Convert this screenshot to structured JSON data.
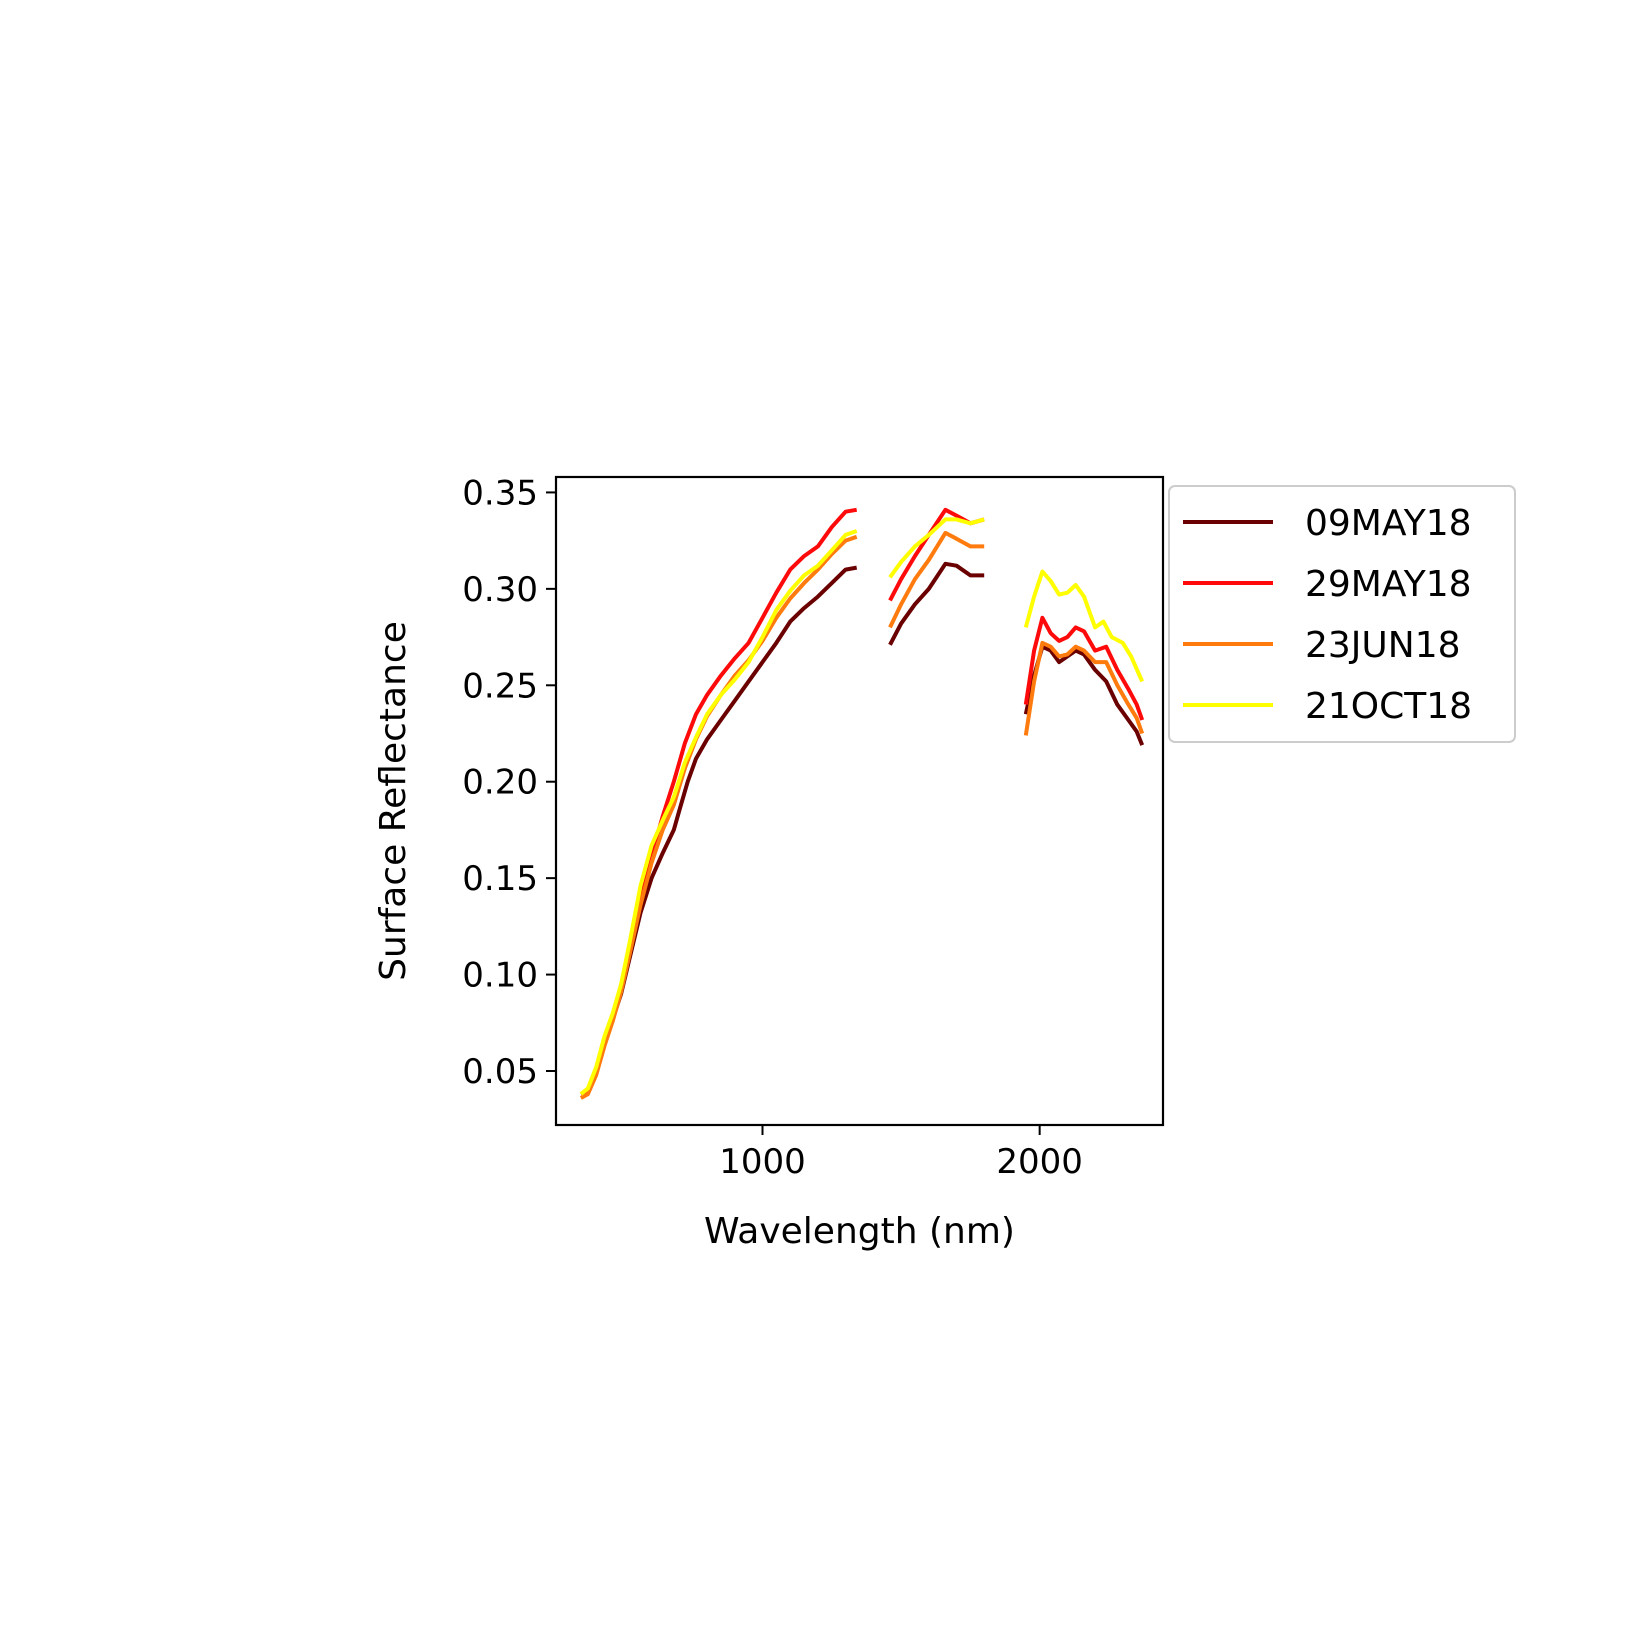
{
  "chart_data": {
    "type": "line",
    "title": "",
    "xlabel": "Wavelength (nm)",
    "ylabel": "Surface Reflectance",
    "xlim": [
      255,
      2445
    ],
    "ylim": [
      0.022,
      0.358
    ],
    "xticks": [
      1000,
      2000
    ],
    "yticks": [
      0.05,
      0.1,
      0.15,
      0.2,
      0.25,
      0.3,
      0.35
    ],
    "grid": false,
    "legend_position": "outside upper right",
    "series": [
      {
        "name": "09MAY18",
        "color": "#6b0000",
        "segments": [
          [
            [
              345,
              0.038
            ],
            [
              370,
              0.04
            ],
            [
              400,
              0.05
            ],
            [
              430,
              0.065
            ],
            [
              460,
              0.077
            ],
            [
              490,
              0.09
            ],
            [
              520,
              0.108
            ],
            [
              560,
              0.132
            ],
            [
              600,
              0.15
            ],
            [
              640,
              0.163
            ],
            [
              680,
              0.175
            ],
            [
              700,
              0.185
            ],
            [
              730,
              0.2
            ],
            [
              760,
              0.212
            ],
            [
              800,
              0.222
            ],
            [
              850,
              0.232
            ],
            [
              900,
              0.242
            ],
            [
              950,
              0.252
            ],
            [
              1000,
              0.262
            ],
            [
              1050,
              0.272
            ],
            [
              1100,
              0.283
            ],
            [
              1150,
              0.29
            ],
            [
              1200,
              0.296
            ],
            [
              1250,
              0.303
            ],
            [
              1300,
              0.31
            ],
            [
              1340,
              0.311
            ]
          ],
          [
            [
              1460,
              0.271
            ],
            [
              1500,
              0.282
            ],
            [
              1550,
              0.292
            ],
            [
              1600,
              0.3
            ],
            [
              1660,
              0.313
            ],
            [
              1700,
              0.312
            ],
            [
              1750,
              0.307
            ],
            [
              1800,
              0.307
            ]
          ],
          [
            [
              1950,
              0.235
            ],
            [
              1980,
              0.255
            ],
            [
              2010,
              0.27
            ],
            [
              2040,
              0.268
            ],
            [
              2070,
              0.262
            ],
            [
              2100,
              0.265
            ],
            [
              2130,
              0.268
            ],
            [
              2160,
              0.266
            ],
            [
              2200,
              0.258
            ],
            [
              2240,
              0.252
            ],
            [
              2280,
              0.24
            ],
            [
              2320,
              0.232
            ],
            [
              2350,
              0.226
            ],
            [
              2370,
              0.219
            ]
          ]
        ]
      },
      {
        "name": "29MAY18",
        "color": "#ff0a0a",
        "segments": [
          [
            [
              345,
              0.038
            ],
            [
              370,
              0.04
            ],
            [
              400,
              0.05
            ],
            [
              430,
              0.065
            ],
            [
              460,
              0.078
            ],
            [
              490,
              0.093
            ],
            [
              520,
              0.112
            ],
            [
              560,
              0.14
            ],
            [
              600,
              0.162
            ],
            [
              640,
              0.182
            ],
            [
              680,
              0.2
            ],
            [
              720,
              0.22
            ],
            [
              760,
              0.235
            ],
            [
              800,
              0.245
            ],
            [
              850,
              0.255
            ],
            [
              900,
              0.264
            ],
            [
              950,
              0.272
            ],
            [
              1000,
              0.285
            ],
            [
              1050,
              0.298
            ],
            [
              1100,
              0.31
            ],
            [
              1150,
              0.317
            ],
            [
              1200,
              0.322
            ],
            [
              1250,
              0.332
            ],
            [
              1300,
              0.34
            ],
            [
              1340,
              0.341
            ]
          ],
          [
            [
              1460,
              0.294
            ],
            [
              1500,
              0.305
            ],
            [
              1550,
              0.317
            ],
            [
              1600,
              0.328
            ],
            [
              1660,
              0.341
            ],
            [
              1700,
              0.338
            ],
            [
              1750,
              0.334
            ],
            [
              1800,
              0.336
            ]
          ],
          [
            [
              1950,
              0.24
            ],
            [
              1980,
              0.268
            ],
            [
              2010,
              0.285
            ],
            [
              2040,
              0.277
            ],
            [
              2070,
              0.273
            ],
            [
              2100,
              0.275
            ],
            [
              2130,
              0.28
            ],
            [
              2160,
              0.278
            ],
            [
              2200,
              0.268
            ],
            [
              2240,
              0.27
            ],
            [
              2280,
              0.258
            ],
            [
              2320,
              0.248
            ],
            [
              2350,
              0.24
            ],
            [
              2370,
              0.232
            ]
          ]
        ]
      },
      {
        "name": "23JUN18",
        "color": "#ff7b0d",
        "segments": [
          [
            [
              345,
              0.036
            ],
            [
              370,
              0.038
            ],
            [
              400,
              0.048
            ],
            [
              430,
              0.063
            ],
            [
              460,
              0.076
            ],
            [
              490,
              0.091
            ],
            [
              520,
              0.11
            ],
            [
              560,
              0.136
            ],
            [
              600,
              0.158
            ],
            [
              640,
              0.175
            ],
            [
              680,
              0.188
            ],
            [
              720,
              0.207
            ],
            [
              760,
              0.222
            ],
            [
              800,
              0.234
            ],
            [
              850,
              0.245
            ],
            [
              900,
              0.255
            ],
            [
              950,
              0.263
            ],
            [
              1000,
              0.273
            ],
            [
              1050,
              0.285
            ],
            [
              1100,
              0.295
            ],
            [
              1150,
              0.303
            ],
            [
              1200,
              0.31
            ],
            [
              1250,
              0.318
            ],
            [
              1300,
              0.325
            ],
            [
              1340,
              0.327
            ]
          ],
          [
            [
              1460,
              0.28
            ],
            [
              1500,
              0.292
            ],
            [
              1550,
              0.305
            ],
            [
              1600,
              0.315
            ],
            [
              1660,
              0.329
            ],
            [
              1700,
              0.326
            ],
            [
              1750,
              0.322
            ],
            [
              1800,
              0.322
            ]
          ],
          [
            [
              1950,
              0.224
            ],
            [
              1980,
              0.252
            ],
            [
              2010,
              0.272
            ],
            [
              2040,
              0.27
            ],
            [
              2070,
              0.265
            ],
            [
              2100,
              0.266
            ],
            [
              2130,
              0.27
            ],
            [
              2160,
              0.268
            ],
            [
              2200,
              0.262
            ],
            [
              2240,
              0.262
            ],
            [
              2280,
              0.25
            ],
            [
              2320,
              0.24
            ],
            [
              2350,
              0.233
            ],
            [
              2370,
              0.225
            ]
          ]
        ]
      },
      {
        "name": "21OCT18",
        "color": "#ffff00",
        "segments": [
          [
            [
              345,
              0.038
            ],
            [
              370,
              0.041
            ],
            [
              400,
              0.052
            ],
            [
              430,
              0.068
            ],
            [
              460,
              0.08
            ],
            [
              490,
              0.095
            ],
            [
              520,
              0.116
            ],
            [
              560,
              0.146
            ],
            [
              600,
              0.167
            ],
            [
              640,
              0.18
            ],
            [
              680,
              0.192
            ],
            [
              720,
              0.21
            ],
            [
              760,
              0.223
            ],
            [
              800,
              0.235
            ],
            [
              850,
              0.245
            ],
            [
              900,
              0.253
            ],
            [
              950,
              0.262
            ],
            [
              1000,
              0.275
            ],
            [
              1050,
              0.289
            ],
            [
              1100,
              0.299
            ],
            [
              1150,
              0.307
            ],
            [
              1200,
              0.312
            ],
            [
              1250,
              0.32
            ],
            [
              1300,
              0.328
            ],
            [
              1340,
              0.33
            ]
          ],
          [
            [
              1460,
              0.306
            ],
            [
              1500,
              0.314
            ],
            [
              1550,
              0.322
            ],
            [
              1600,
              0.328
            ],
            [
              1660,
              0.336
            ],
            [
              1700,
              0.336
            ],
            [
              1750,
              0.334
            ],
            [
              1800,
              0.336
            ]
          ],
          [
            [
              1950,
              0.28
            ],
            [
              1980,
              0.296
            ],
            [
              2010,
              0.309
            ],
            [
              2040,
              0.304
            ],
            [
              2070,
              0.297
            ],
            [
              2100,
              0.298
            ],
            [
              2130,
              0.302
            ],
            [
              2160,
              0.296
            ],
            [
              2200,
              0.28
            ],
            [
              2230,
              0.283
            ],
            [
              2260,
              0.275
            ],
            [
              2300,
              0.272
            ],
            [
              2330,
              0.265
            ],
            [
              2370,
              0.252
            ]
          ]
        ]
      }
    ]
  }
}
